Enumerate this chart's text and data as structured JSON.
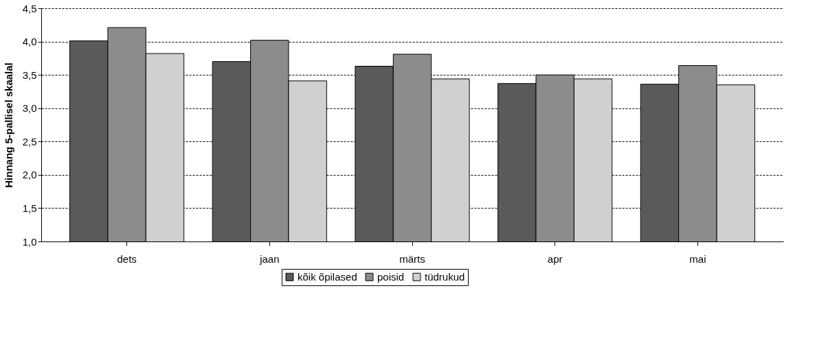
{
  "chart_data": {
    "type": "bar",
    "ylabel": "Hinnang 5-pallisel skaalal",
    "categories": [
      "dets",
      "jaan",
      "märts",
      "apr",
      "mai"
    ],
    "series": [
      {
        "name": "kõik õpilased",
        "color": "#5a5a5a",
        "values": [
          4.01,
          3.7,
          3.63,
          3.37,
          3.36
        ]
      },
      {
        "name": "poisid",
        "color": "#8c8c8c",
        "values": [
          4.21,
          4.02,
          3.81,
          3.5,
          3.64
        ]
      },
      {
        "name": "tüdrukud",
        "color": "#d0d0d0",
        "values": [
          3.82,
          3.41,
          3.44,
          3.44,
          3.35
        ]
      }
    ],
    "ylim": [
      1,
      4.5
    ],
    "yticks": [
      {
        "value": 1,
        "label": "1,0"
      },
      {
        "value": 1.5,
        "label": "1,5"
      },
      {
        "value": 2,
        "label": "2,0"
      },
      {
        "value": 2.5,
        "label": "2,5"
      },
      {
        "value": 3,
        "label": "3,0"
      },
      {
        "value": 3.5,
        "label": "3,5"
      },
      {
        "value": 4,
        "label": "4,0"
      },
      {
        "value": 4.5,
        "label": "4,5"
      }
    ],
    "grid": "y",
    "legend": "bottom"
  }
}
